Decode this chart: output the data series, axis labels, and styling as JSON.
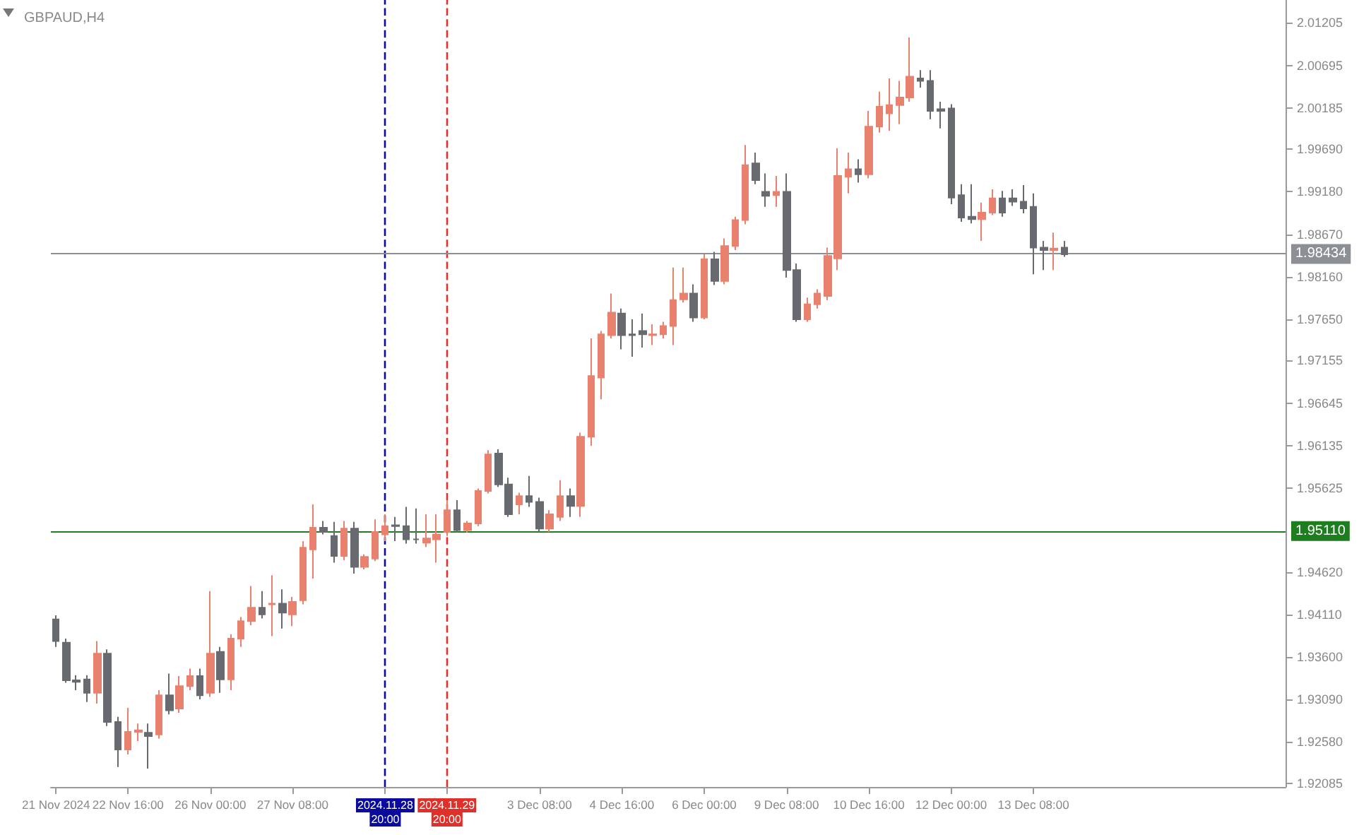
{
  "chart_data": {
    "type": "candlestick",
    "title": "GBPAUD,H4",
    "categories": [
      "21 Nov 2024",
      null,
      null,
      null,
      null,
      null,
      null,
      "22 Nov 16:00",
      null,
      null,
      null,
      null,
      null,
      null,
      null,
      "26 Nov 00:00",
      null,
      null,
      null,
      null,
      null,
      null,
      null,
      "27 Nov 08:00",
      null,
      null,
      null,
      null,
      null,
      null,
      null,
      null,
      "2024.11.28 20:00",
      null,
      null,
      null,
      null,
      null,
      "2024.11.29 20:00",
      null,
      null,
      null,
      null,
      null,
      null,
      null,
      null,
      "3 Dec 08:00",
      null,
      null,
      null,
      null,
      null,
      null,
      null,
      "4 Dec 16:00",
      null,
      null,
      null,
      null,
      null,
      null,
      null,
      "6 Dec 00:00",
      null,
      null,
      null,
      null,
      null,
      null,
      null,
      "9 Dec 08:00",
      null,
      null,
      null,
      null,
      null,
      null,
      null,
      "10 Dec 16:00",
      null,
      null,
      null,
      null,
      null,
      null,
      null,
      "12 Dec 00:00",
      null,
      null,
      null,
      null,
      null,
      null,
      null,
      "13 Dec 08:00",
      null,
      null,
      null,
      null,
      null,
      null,
      null,
      null,
      null,
      null,
      null,
      null,
      null,
      null,
      null,
      null,
      null,
      null,
      null,
      null,
      null,
      null,
      null,
      null
    ],
    "ohlc": [
      [
        1.9405,
        1.941,
        1.9372,
        1.9379
      ],
      [
        1.9377,
        1.9382,
        1.9329,
        1.9332
      ],
      [
        1.9332,
        1.9338,
        1.932,
        1.933
      ],
      [
        1.9333,
        1.9338,
        1.9306,
        1.9317
      ],
      [
        1.9317,
        1.9379,
        1.9304,
        1.9364
      ],
      [
        1.9364,
        1.9369,
        1.9277,
        1.9282
      ],
      [
        1.9282,
        1.9288,
        1.9228,
        1.9249
      ],
      [
        1.9249,
        1.9299,
        1.9243,
        1.927
      ],
      [
        1.927,
        1.928,
        1.9259,
        1.9272
      ],
      [
        1.9269,
        1.928,
        1.9226,
        1.9265
      ],
      [
        1.9267,
        1.932,
        1.9262,
        1.9314
      ],
      [
        1.9314,
        1.934,
        1.9291,
        1.9296
      ],
      [
        1.9298,
        1.9337,
        1.9293,
        1.9325
      ],
      [
        1.9325,
        1.9346,
        1.932,
        1.9337
      ],
      [
        1.9337,
        1.9346,
        1.9309,
        1.9314
      ],
      [
        1.9317,
        1.9439,
        1.9312,
        1.9364
      ],
      [
        1.9366,
        1.9372,
        1.9317,
        1.9333
      ],
      [
        1.9333,
        1.9387,
        1.932,
        1.9382
      ],
      [
        1.9382,
        1.9408,
        1.9372,
        1.9403
      ],
      [
        1.9403,
        1.9445,
        1.9398,
        1.9419
      ],
      [
        1.9419,
        1.9439,
        1.9406,
        1.9411
      ],
      [
        1.9423,
        1.9458,
        1.9385,
        1.9424
      ],
      [
        1.9424,
        1.9441,
        1.9394,
        1.9413
      ],
      [
        1.9411,
        1.9432,
        1.9397,
        1.9426
      ],
      [
        1.9428,
        1.9499,
        1.9423,
        1.9491
      ],
      [
        1.9489,
        1.9543,
        1.9454,
        1.9515
      ],
      [
        1.9515,
        1.9523,
        1.9507,
        1.951
      ],
      [
        1.9505,
        1.9522,
        1.9473,
        1.9481
      ],
      [
        1.9481,
        1.9523,
        1.9476,
        1.9514
      ],
      [
        1.9514,
        1.9522,
        1.946,
        1.9468
      ],
      [
        1.9468,
        1.9483,
        1.9465,
        1.948
      ],
      [
        1.9478,
        1.9525,
        1.9475,
        1.951
      ],
      [
        1.9507,
        1.9531,
        1.9499,
        1.9517
      ],
      [
        1.9518,
        1.9528,
        1.9499,
        1.9517
      ],
      [
        1.9517,
        1.954,
        1.9496,
        1.9501
      ],
      [
        1.9501,
        1.9538,
        1.9496,
        1.9501
      ],
      [
        1.9497,
        1.9531,
        1.9492,
        1.9502
      ],
      [
        1.9501,
        1.9531,
        1.9473,
        1.9507
      ],
      [
        1.951,
        1.9548,
        1.9505,
        1.9536
      ],
      [
        1.9536,
        1.9548,
        1.9509,
        1.9512
      ],
      [
        1.9512,
        1.9523,
        1.9509,
        1.952
      ],
      [
        1.952,
        1.9562,
        1.9517,
        1.9559
      ],
      [
        1.9559,
        1.9608,
        1.9556,
        1.9603
      ],
      [
        1.9604,
        1.9609,
        1.9564,
        1.9567
      ],
      [
        1.9567,
        1.9575,
        1.9528,
        1.9531
      ],
      [
        1.9543,
        1.9557,
        1.9531,
        1.9553
      ],
      [
        1.9553,
        1.9577,
        1.954,
        1.9546
      ],
      [
        1.9546,
        1.9551,
        1.951,
        1.9514
      ],
      [
        1.9514,
        1.9536,
        1.951,
        1.9531
      ],
      [
        1.9528,
        1.9572,
        1.9523,
        1.9553
      ],
      [
        1.9553,
        1.9562,
        1.9528,
        1.9541
      ],
      [
        1.9541,
        1.9629,
        1.9528,
        1.9624
      ],
      [
        1.9624,
        1.9742,
        1.9613,
        1.9697
      ],
      [
        1.9695,
        1.9751,
        1.9669,
        1.9747
      ],
      [
        1.9746,
        1.9796,
        1.9742,
        1.9773
      ],
      [
        1.9772,
        1.9778,
        1.9729,
        1.9746
      ],
      [
        1.9747,
        1.9765,
        1.972,
        1.9746
      ],
      [
        1.9751,
        1.9772,
        1.9731,
        1.9747
      ],
      [
        1.9746,
        1.9759,
        1.9734,
        1.9747
      ],
      [
        1.9747,
        1.9762,
        1.9742,
        1.9757
      ],
      [
        1.9757,
        1.9827,
        1.9734,
        1.9788
      ],
      [
        1.9789,
        1.9827,
        1.9785,
        1.9796
      ],
      [
        1.9796,
        1.9807,
        1.9762,
        1.9767
      ],
      [
        1.9767,
        1.9843,
        1.9765,
        1.9837
      ],
      [
        1.9837,
        1.9846,
        1.9806,
        1.9811
      ],
      [
        1.9811,
        1.9862,
        1.9807,
        1.9853
      ],
      [
        1.9853,
        1.9888,
        1.9848,
        1.9884
      ],
      [
        1.9884,
        1.9974,
        1.9879,
        1.995
      ],
      [
        1.9952,
        1.9965,
        1.9927,
        1.9932
      ],
      [
        1.9918,
        1.994,
        1.99,
        1.9913
      ],
      [
        1.9914,
        1.9937,
        1.99,
        1.9918
      ],
      [
        1.9918,
        1.994,
        1.9815,
        1.9824
      ],
      [
        1.9824,
        1.9832,
        1.9762,
        1.9765
      ],
      [
        1.9765,
        1.9791,
        1.9762,
        1.9783
      ],
      [
        1.9783,
        1.9801,
        1.9778,
        1.9796
      ],
      [
        1.9793,
        1.9851,
        1.9788,
        1.9841
      ],
      [
        1.9838,
        1.997,
        1.9824,
        1.9937
      ],
      [
        1.9936,
        1.9965,
        1.9916,
        1.9945
      ],
      [
        1.9945,
        1.9957,
        1.9929,
        1.9939
      ],
      [
        1.9939,
        2.0015,
        1.9934,
        1.9996
      ],
      [
        1.9996,
        2.0038,
        1.9989,
        2.002
      ],
      [
        2.0012,
        2.0054,
        1.9991,
        2.0022
      ],
      [
        2.0022,
        2.0051,
        1.9999,
        2.0031
      ],
      [
        2.0031,
        2.0103,
        2.0026,
        2.0056
      ],
      [
        2.0054,
        2.0064,
        2.0043,
        2.0051
      ],
      [
        2.0051,
        2.0064,
        2.0005,
        2.0015
      ],
      [
        2.0017,
        2.0026,
        1.9994,
        2.0015
      ],
      [
        2.0018,
        2.0023,
        1.9903,
        1.9911
      ],
      [
        1.9914,
        1.9927,
        1.9882,
        1.9887
      ],
      [
        1.9888,
        1.9927,
        1.988,
        1.9885
      ],
      [
        1.9885,
        1.9905,
        1.9859,
        1.9893
      ],
      [
        1.9893,
        1.9921,
        1.989,
        1.991
      ],
      [
        1.991,
        1.9919,
        1.9888,
        1.9893
      ],
      [
        1.991,
        1.9921,
        1.9901,
        1.9906
      ],
      [
        1.9906,
        1.9926,
        1.9892,
        1.9898
      ],
      [
        1.99,
        1.9916,
        1.9819,
        1.9851
      ],
      [
        1.9851,
        1.9859,
        1.9824,
        1.9848
      ],
      [
        1.9848,
        1.9869,
        1.9824,
        1.985
      ],
      [
        1.9851,
        1.9859,
        1.984,
        1.9843
      ],
      null,
      null,
      null,
      null,
      null,
      null,
      null,
      null,
      null,
      null,
      null,
      null,
      null,
      null,
      null,
      null,
      null,
      null,
      null,
      null,
      null
    ],
    "colors": [
      "#676a6e",
      "#676a6e",
      "#676a6e",
      "#676a6e",
      "#e8826e",
      "#676a6e",
      "#676a6e",
      "#e8826e",
      "#e8826e",
      "#676a6e",
      "#e8826e",
      "#676a6e",
      "#e8826e",
      "#e8826e",
      "#676a6e",
      "#e8826e",
      "#676a6e",
      "#e8826e",
      "#e8826e",
      "#e8826e",
      "#676a6e",
      "#e8826e",
      "#676a6e",
      "#e8826e",
      "#e8826e",
      "#e8826e",
      "#676a6e",
      "#676a6e",
      "#e8826e",
      "#676a6e",
      "#e8826e",
      "#e8826e",
      "#e8826e",
      "#676a6e",
      "#676a6e",
      "#676a6e",
      "#e8826e",
      "#e8826e",
      "#e8826e",
      "#676a6e",
      "#e8826e",
      "#e8826e",
      "#e8826e",
      "#676a6e",
      "#676a6e",
      "#e8826e",
      "#676a6e",
      "#676a6e",
      "#e8826e",
      "#e8826e",
      "#676a6e",
      "#e8826e",
      "#e8826e",
      "#e8826e",
      "#e8826e",
      "#676a6e",
      "#676a6e",
      "#676a6e",
      "#e8826e",
      "#e8826e",
      "#e8826e",
      "#e8826e",
      "#676a6e",
      "#e8826e",
      "#676a6e",
      "#e8826e",
      "#e8826e",
      "#e8826e",
      "#676a6e",
      "#676a6e",
      "#e8826e",
      "#676a6e",
      "#676a6e",
      "#e8826e",
      "#e8826e",
      "#e8826e",
      "#e8826e",
      "#e8826e",
      "#676a6e",
      "#e8826e",
      "#e8826e",
      "#e8826e",
      "#e8826e",
      "#e8826e",
      "#676a6e",
      "#676a6e",
      "#676a6e",
      "#676a6e",
      "#676a6e",
      "#676a6e",
      "#e8826e",
      "#e8826e",
      "#676a6e",
      "#676a6e",
      "#676a6e",
      "#676a6e",
      "#676a6e",
      "#e8826e",
      "#676a6e",
      null,
      null,
      null,
      null,
      null,
      null,
      null,
      null,
      null,
      null,
      null,
      null,
      null,
      null,
      null,
      null,
      null,
      null,
      null,
      null,
      null
    ],
    "ylim": [
      1.9204,
      2.0148
    ],
    "yticks": [
      2.01205,
      2.00695,
      2.00185,
      {
        "value": 1.9969,
        "label": "1.99690"
      },
      {
        "value": 1.9918,
        "label": "1.99180"
      },
      {
        "value": 1.9867,
        "label": "1.98670"
      },
      {
        "value": 1.9816,
        "label": "1.98160"
      },
      {
        "value": 1.9765,
        "label": "1.97650"
      },
      1.97155,
      1.96645,
      1.96135,
      1.95625,
      {
        "value": 1.9462,
        "label": "1.94620"
      },
      {
        "value": 1.9411,
        "label": "1.94110"
      },
      {
        "value": 1.936,
        "label": "1.93600"
      },
      {
        "value": 1.9309,
        "label": "1.93090"
      },
      {
        "value": 1.9258,
        "label": "1.92580"
      },
      1.92085
    ],
    "ref_lines": [
      {
        "axis": "x",
        "value": "2024.11.28 20:00",
        "color": "#0a0a9c",
        "line_style": "dashed"
      },
      {
        "axis": "x",
        "value": "2024.11.29 20:00",
        "color": "#e0302a",
        "line_style": "dashed"
      },
      {
        "axis": "y",
        "value": 1.9511,
        "label": "1.95110",
        "color": "#1e7d1e",
        "line_style": "solid"
      },
      {
        "axis": "y",
        "value": 1.98434,
        "label": "1.98434",
        "color": "#8c8f94",
        "line_style": "solid"
      }
    ],
    "grid": false
  }
}
